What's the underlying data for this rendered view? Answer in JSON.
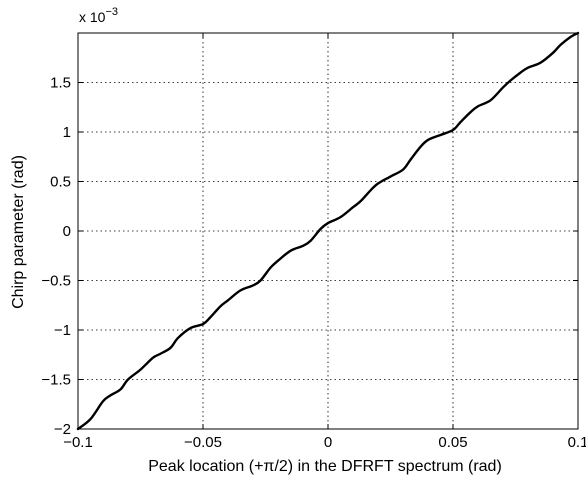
{
  "chart_data": {
    "type": "line",
    "title": "",
    "xlabel": "Peak location (+π/2) in the DFRFT spectrum (rad)",
    "ylabel": "Chirp parameter (rad)",
    "y_exponent_label": "x 10",
    "y_exponent_power": "−3",
    "xlim": [
      -0.1,
      0.1
    ],
    "ylim": [
      -2,
      2
    ],
    "x_ticks": [
      -0.1,
      -0.05,
      0,
      0.05,
      0.1
    ],
    "x_tick_labels": [
      "−0.1",
      "−0.05",
      "0",
      "0.05",
      "0.1"
    ],
    "y_ticks": [
      -2,
      -1.5,
      -1,
      -0.5,
      0,
      0.5,
      1,
      1.5
    ],
    "y_tick_labels": [
      "−2",
      "−1.5",
      "−1",
      "−0.5",
      "0",
      "0.5",
      "1",
      "1.5"
    ],
    "grid": true,
    "grid_style": "dotted",
    "line_color": "#000000",
    "series": [
      {
        "x": [
          -0.1,
          -0.095,
          -0.09,
          -0.087,
          -0.083,
          -0.08,
          -0.075,
          -0.07,
          -0.067,
          -0.063,
          -0.06,
          -0.055,
          -0.05,
          -0.047,
          -0.043,
          -0.04,
          -0.035,
          -0.03,
          -0.027,
          -0.023,
          -0.02,
          -0.015,
          -0.01,
          -0.007,
          -0.003,
          0,
          0.005,
          0.01,
          0.013,
          0.017,
          0.02,
          0.025,
          0.03,
          0.033,
          0.037,
          0.04,
          0.045,
          0.05,
          0.053,
          0.057,
          0.06,
          0.065,
          0.07,
          0.073,
          0.077,
          0.08,
          0.085,
          0.09,
          0.093,
          0.097,
          0.1
        ],
        "y": [
          -2,
          -1.9,
          -1.72,
          -1.66,
          -1.6,
          -1.5,
          -1.4,
          -1.28,
          -1.24,
          -1.18,
          -1.08,
          -0.98,
          -0.94,
          -0.87,
          -0.76,
          -0.7,
          -0.6,
          -0.55,
          -0.5,
          -0.37,
          -0.3,
          -0.2,
          -0.15,
          -0.1,
          0.02,
          0.08,
          0.14,
          0.24,
          0.3,
          0.41,
          0.48,
          0.55,
          0.62,
          0.72,
          0.85,
          0.92,
          0.97,
          1.02,
          1.1,
          1.2,
          1.26,
          1.32,
          1.45,
          1.52,
          1.6,
          1.65,
          1.7,
          1.8,
          1.88,
          1.96,
          2
        ]
      }
    ]
  }
}
